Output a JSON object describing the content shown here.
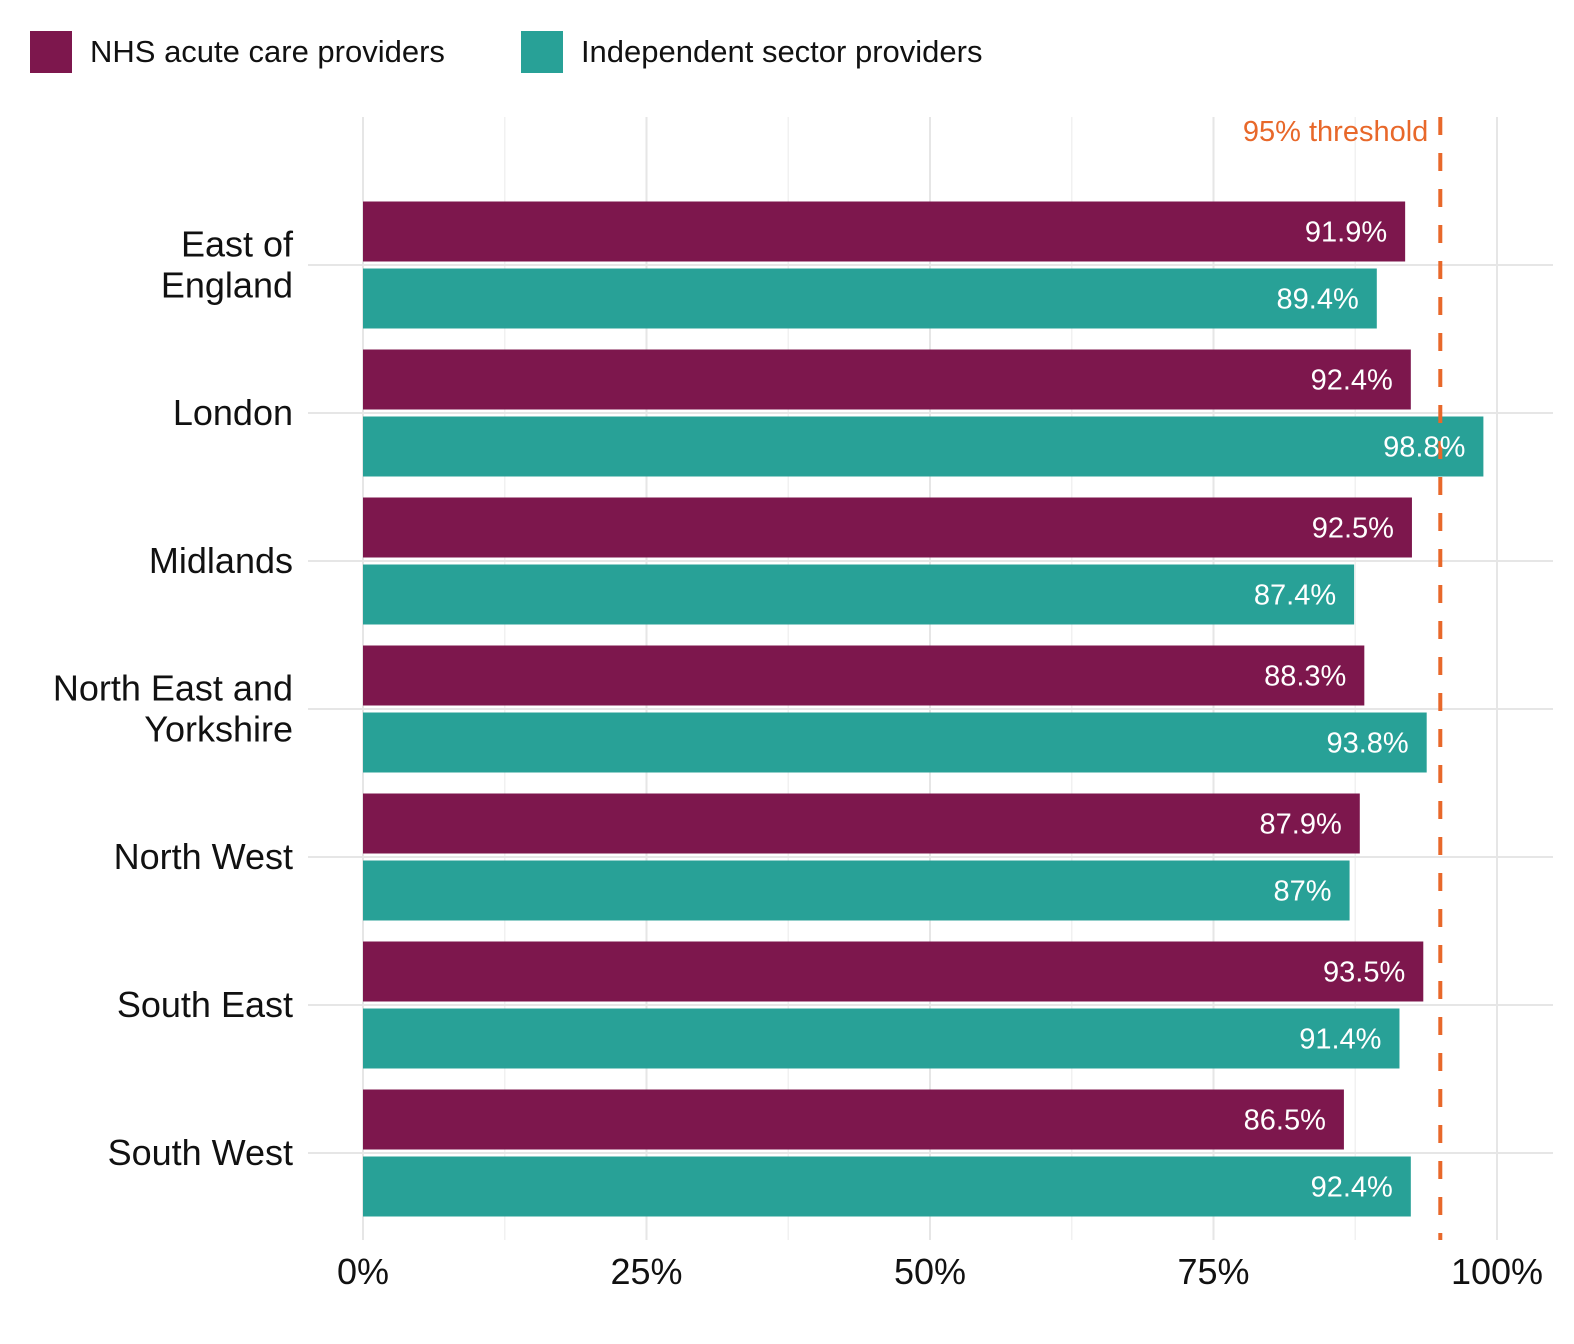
{
  "chart_data": {
    "type": "bar",
    "orientation": "horizontal",
    "categories": [
      "East of England",
      "London",
      "Midlands",
      "North East and Yorkshire",
      "North West",
      "South East",
      "South West"
    ],
    "category_lines": [
      [
        "East of",
        "England"
      ],
      [
        "London"
      ],
      [
        "Midlands"
      ],
      [
        "North East and",
        "Yorkshire"
      ],
      [
        "North West"
      ],
      [
        "South East"
      ],
      [
        "South West"
      ]
    ],
    "series": [
      {
        "name": "NHS acute care providers",
        "color": "#7d174d",
        "values": [
          91.9,
          92.4,
          92.5,
          88.3,
          87.9,
          93.5,
          86.5
        ],
        "labels": [
          "91.9%",
          "92.4%",
          "92.5%",
          "88.3%",
          "87.9%",
          "93.5%",
          "86.5%"
        ]
      },
      {
        "name": "Independent sector providers",
        "color": "#28a197",
        "values": [
          89.4,
          98.8,
          87.4,
          93.8,
          87.0,
          91.4,
          92.4
        ],
        "labels": [
          "89.4%",
          "98.8%",
          "87.4%",
          "93.8%",
          "87%",
          "91.4%",
          "92.4%"
        ]
      }
    ],
    "xlim": [
      0,
      100
    ],
    "x_ticks": [
      0,
      25,
      50,
      75,
      100
    ],
    "x_tick_labels": [
      "0%",
      "25%",
      "50%",
      "75%",
      "100%"
    ],
    "reference_line": {
      "value": 95,
      "label": "95% threshold",
      "color": "#e8682a",
      "style": "dashed"
    },
    "legend_position": "top-left",
    "grid": true,
    "title": "",
    "xlabel": "",
    "ylabel": ""
  }
}
